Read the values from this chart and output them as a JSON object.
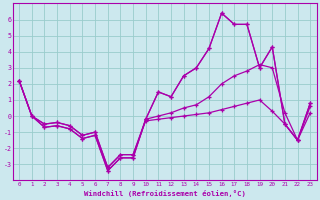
{
  "xlabel": "Windchill (Refroidissement éolien,°C)",
  "ylabel": "",
  "bg_color": "#cce8ee",
  "line_color": "#aa00aa",
  "grid_color": "#99cccc",
  "xlim": [
    -0.5,
    23.5
  ],
  "ylim": [
    -4,
    7
  ],
  "xticks": [
    0,
    1,
    2,
    3,
    4,
    5,
    6,
    7,
    8,
    9,
    10,
    11,
    12,
    13,
    14,
    15,
    16,
    17,
    18,
    19,
    20,
    21,
    22,
    23
  ],
  "yticks": [
    -3,
    -2,
    -1,
    0,
    1,
    2,
    3,
    4,
    5,
    6
  ],
  "lines": [
    {
      "x": [
        0,
        1,
        2,
        3,
        4,
        5,
        6,
        7,
        8,
        9,
        10,
        11,
        12,
        13,
        14,
        15,
        16,
        17,
        18,
        19,
        20,
        21,
        22,
        23
      ],
      "y": [
        2.2,
        0.0,
        -0.7,
        -0.6,
        -0.8,
        -1.4,
        -1.2,
        -3.4,
        -2.6,
        -2.6,
        -0.2,
        1.5,
        1.2,
        2.5,
        3.0,
        4.2,
        6.4,
        5.7,
        5.7,
        3.0,
        4.3,
        -0.5,
        -1.5,
        0.8
      ]
    },
    {
      "x": [
        0,
        1,
        2,
        3,
        4,
        5,
        6,
        7,
        8,
        9,
        10,
        11,
        12,
        13,
        14,
        15,
        16,
        17,
        18,
        19,
        20,
        21,
        22,
        23
      ],
      "y": [
        2.2,
        0.0,
        -0.7,
        -0.6,
        -0.8,
        -1.4,
        -1.2,
        -3.4,
        -2.6,
        -2.6,
        -0.2,
        1.5,
        1.2,
        2.5,
        3.0,
        4.2,
        6.4,
        5.7,
        5.7,
        3.0,
        4.3,
        -0.5,
        -1.5,
        0.8
      ]
    },
    {
      "x": [
        0,
        1,
        2,
        3,
        4,
        5,
        6,
        7,
        8,
        9,
        10,
        11,
        12,
        13,
        14,
        15,
        16,
        17,
        18,
        19,
        20,
        21,
        22,
        23
      ],
      "y": [
        2.2,
        0.0,
        -0.5,
        -0.4,
        -0.6,
        -1.2,
        -1.0,
        -3.2,
        -2.4,
        -2.4,
        -0.2,
        0.0,
        0.2,
        0.5,
        0.7,
        1.2,
        2.0,
        2.5,
        2.8,
        3.2,
        3.0,
        0.2,
        -1.5,
        0.6
      ]
    },
    {
      "x": [
        0,
        1,
        2,
        3,
        4,
        5,
        6,
        7,
        8,
        9,
        10,
        11,
        12,
        13,
        14,
        15,
        16,
        17,
        18,
        19,
        20,
        21,
        22,
        23
      ],
      "y": [
        2.2,
        0.0,
        -0.5,
        -0.4,
        -0.6,
        -1.2,
        -1.0,
        -3.2,
        -2.4,
        -2.4,
        -0.3,
        -0.2,
        -0.1,
        0.0,
        0.1,
        0.2,
        0.4,
        0.6,
        0.8,
        1.0,
        0.3,
        -0.5,
        -1.5,
        0.2
      ]
    }
  ]
}
